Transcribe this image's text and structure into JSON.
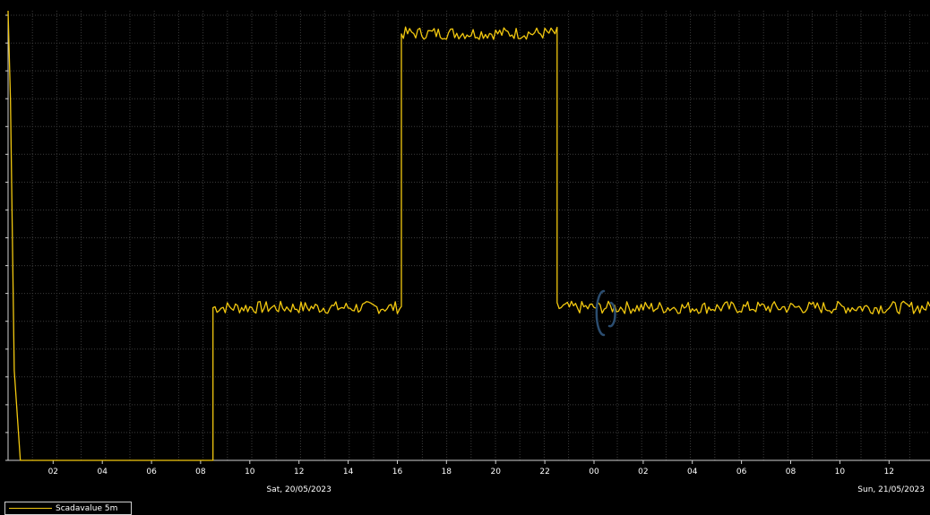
{
  "chart_data": {
    "type": "line",
    "title": "",
    "xlabel": "",
    "ylabel": "",
    "x_unit": "hour",
    "x_range": [
      "2023-05-20 00:10",
      "2023-05-21 13:40"
    ],
    "y_ticks_labeled": false,
    "grid": true,
    "background": "#000000",
    "x_tick_labels": [
      "02",
      "04",
      "06",
      "08",
      "10",
      "12",
      "14",
      "16",
      "18",
      "20",
      "22",
      "00",
      "02",
      "04",
      "06",
      "08",
      "10",
      "12"
    ],
    "x_tick_times": [
      "2023-05-20 02:00",
      "2023-05-20 04:00",
      "2023-05-20 06:00",
      "2023-05-20 08:00",
      "2023-05-20 10:00",
      "2023-05-20 12:00",
      "2023-05-20 14:00",
      "2023-05-20 16:00",
      "2023-05-20 18:00",
      "2023-05-20 20:00",
      "2023-05-20 22:00",
      "2023-05-21 00:00",
      "2023-05-21 02:00",
      "2023-05-21 04:00",
      "2023-05-21 06:00",
      "2023-05-21 08:00",
      "2023-05-21 10:00",
      "2023-05-21 12:00"
    ],
    "date_labels": [
      {
        "text": "Sat, 20/05/2023",
        "time": "2023-05-20 12:00"
      },
      {
        "text": "Sun, 21/05/2023",
        "time": "2023-05-21 12:30"
      }
    ],
    "legend": {
      "position": "bottom-left",
      "entries": [
        "Scadavalue 5m"
      ]
    },
    "series": [
      {
        "name": "Scadavalue 5m",
        "color": "#f2c80f",
        "approx_levels_percent_of_plot_height": {
          "baseline": 0,
          "low_plateau": 34,
          "high_plateau": 95
        },
        "segments": [
          {
            "from": "2023-05-20 00:10",
            "to": "2023-05-20 00:40",
            "level": "falling from 100 to 0"
          },
          {
            "from": "2023-05-20 00:40",
            "to": "2023-05-20 08:30",
            "level": "baseline"
          },
          {
            "from": "2023-05-20 08:30",
            "to": "2023-05-20 16:10",
            "level": "low_plateau"
          },
          {
            "from": "2023-05-20 16:10",
            "to": "2023-05-20 22:30",
            "level": "high_plateau"
          },
          {
            "from": "2023-05-20 22:30",
            "to": "2023-05-21 13:40",
            "level": "low_plateau"
          }
        ]
      }
    ]
  }
}
